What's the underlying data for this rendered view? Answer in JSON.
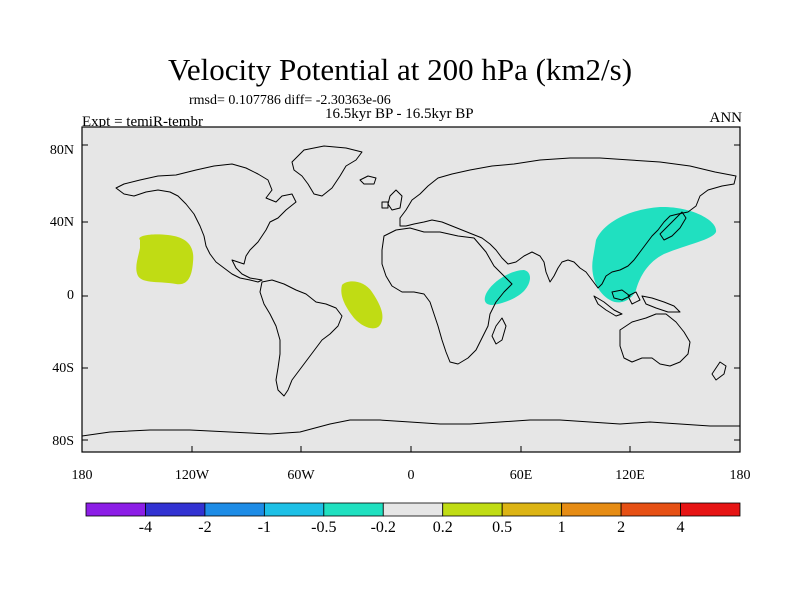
{
  "title": "Velocity Potential at 200 hPa (km2/s)",
  "stats_line": "rmsd= 0.107786 diff= -2.30363e-06",
  "period": "16.5kyr BP - 16.5kyr BP",
  "experiment": "Expt = temiR-tembr",
  "season": "ANN",
  "map": {
    "projection": "cylindrical equidistant",
    "lon_range": [
      -180,
      180
    ],
    "lat_range": [
      -90,
      90
    ],
    "x_tick_labels": [
      "180",
      "120W",
      "60W",
      "0",
      "60E",
      "120E",
      "180"
    ],
    "y_tick_labels": [
      "80N",
      "40N",
      "0",
      "40S",
      "80S"
    ],
    "background_color": "#e6e6e6",
    "anomaly_regions": [
      {
        "region": "central North Pacific",
        "color": "#c0dc14"
      },
      {
        "region": "tropical South Atlantic off Brazil",
        "color": "#c0dc14"
      },
      {
        "region": "Arabian Sea / East Africa",
        "color": "#20e0c0"
      },
      {
        "region": "East Asia / western Pacific",
        "color": "#20e0c0"
      }
    ]
  },
  "colorbar": {
    "colors": [
      "#8c1ee6",
      "#3232d2",
      "#1e8ce6",
      "#1ec0e6",
      "#20e0c0",
      "#e6e6e6",
      "#c0dc14",
      "#dcb414",
      "#e68c14",
      "#e65014",
      "#e61414"
    ],
    "labels": [
      "-4",
      "-2",
      "-1",
      "-0.5",
      "-0.2",
      "0.2",
      "0.5",
      "1",
      "2",
      "4"
    ]
  }
}
